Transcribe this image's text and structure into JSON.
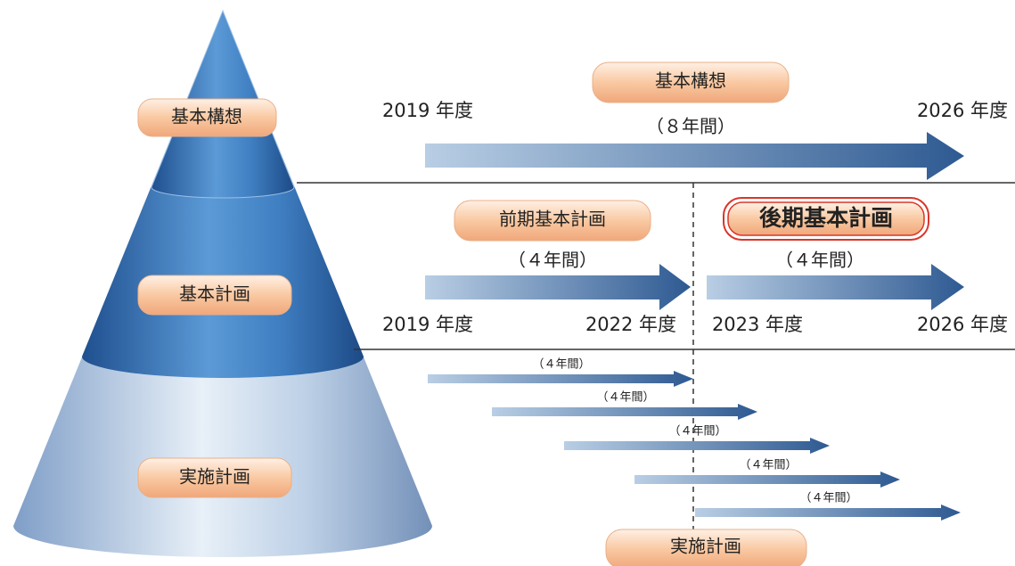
{
  "cone": {
    "levels": [
      "基本構想",
      "基本計画",
      "実施計画"
    ]
  },
  "vision": {
    "label": "基本構想",
    "duration": "（８年間）",
    "start": "2019 年度",
    "end": "2026 年度"
  },
  "plan": {
    "first": {
      "label": "前期基本計画",
      "duration": "（４年間）",
      "start": "2019 年度",
      "end": "2022 年度"
    },
    "second": {
      "label": "後期基本計画",
      "duration": "（４年間）",
      "start": "2023 年度",
      "end": "2026 年度"
    }
  },
  "implementation": {
    "label": "実施計画",
    "cycles": [
      "（４年間）",
      "（４年間）",
      "（４年間）",
      "（４年間）",
      "（４年間）"
    ]
  }
}
